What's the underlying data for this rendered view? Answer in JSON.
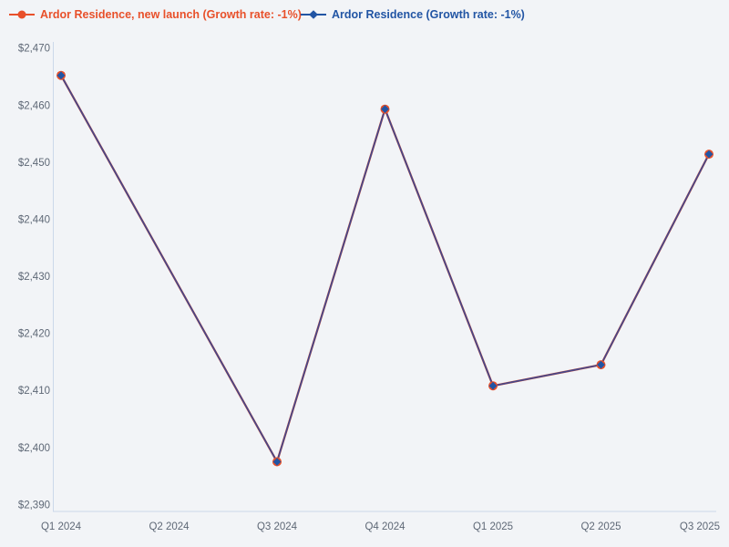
{
  "colors": {
    "background": "#f2f4f7",
    "axis": "#ccd8ea",
    "tick_text": "#5e6876"
  },
  "chart_data": {
    "type": "line",
    "title": "",
    "categories": [
      "Q1 2024",
      "Q2 2024",
      "Q3 2024",
      "Q4 2024",
      "Q1 2025",
      "Q2 2025",
      "Q3 2025"
    ],
    "series": [
      {
        "name": "Ardor Residence, new launch (Growth rate: -1%)",
        "color": "#e8502a",
        "marker": "circle",
        "values": [
          2465.2,
          null,
          2397.5,
          2459.3,
          2410.8,
          2414.5,
          2451.4
        ]
      },
      {
        "name": "Ardor Residence (Growth rate: -1%)",
        "color": "#2255a4",
        "line_color": "#474788",
        "marker": "diamond",
        "values": [
          2465.2,
          null,
          2397.5,
          2459.3,
          2410.8,
          2414.5,
          2451.4
        ]
      }
    ],
    "ylim": [
      2390,
      2470
    ],
    "y_ticks": [
      {
        "value": 2470,
        "label": "$2,470"
      },
      {
        "value": 2460,
        "label": "$2,460"
      },
      {
        "value": 2450,
        "label": "$2,450"
      },
      {
        "value": 2440,
        "label": "$2,440"
      },
      {
        "value": 2430,
        "label": "$2,430"
      },
      {
        "value": 2420,
        "label": "$2,420"
      },
      {
        "value": 2410,
        "label": "$2,410"
      },
      {
        "value": 2400,
        "label": "$2,400"
      },
      {
        "value": 2390,
        "label": "$2,390"
      }
    ],
    "xlabel": "",
    "ylabel": "",
    "grid": false,
    "legend_position": "top-left"
  }
}
